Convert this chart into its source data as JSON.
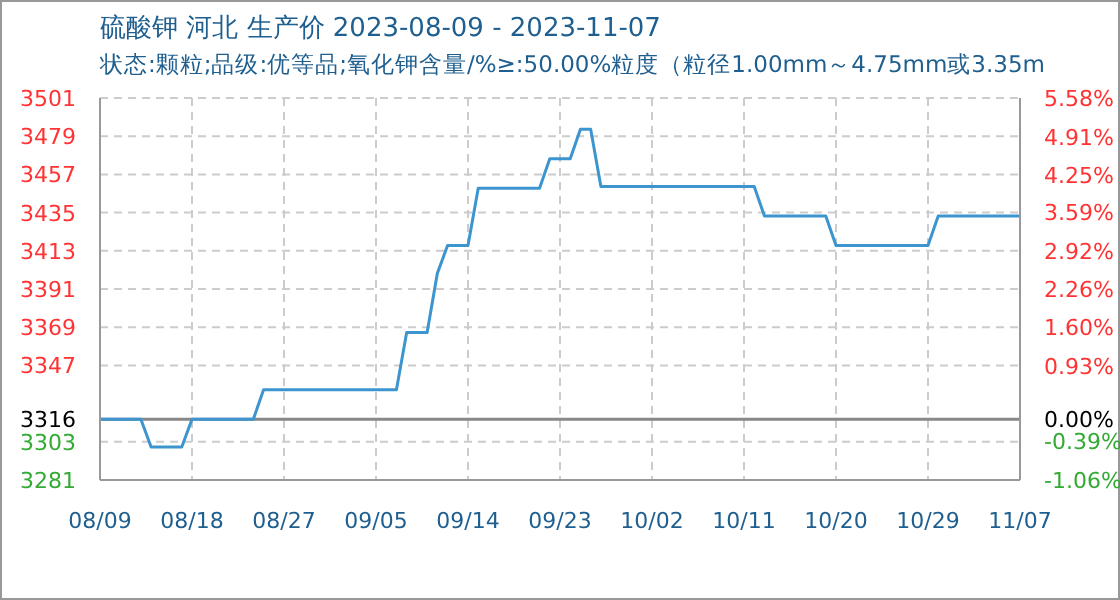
{
  "chart_data": {
    "type": "line",
    "title": "硫酸钾 河北 生产价 2023-08-09 - 2023-11-07",
    "subtitle": "状态:颗粒;品级:优等品;氧化钾含量/%≥:50.00%粒度（粒径1.00mm～4.75mm或3.35m",
    "x": [
      "2023-08-09",
      "2023-08-13",
      "2023-08-14",
      "2023-08-17",
      "2023-08-18",
      "2023-08-24",
      "2023-08-25",
      "2023-09-07",
      "2023-09-08",
      "2023-09-10",
      "2023-09-11",
      "2023-09-12",
      "2023-09-14",
      "2023-09-15",
      "2023-09-21",
      "2023-09-22",
      "2023-09-24",
      "2023-09-25",
      "2023-09-26",
      "2023-09-27",
      "2023-10-12",
      "2023-10-13",
      "2023-10-19",
      "2023-10-20",
      "2023-10-29",
      "2023-10-30",
      "2023-11-07"
    ],
    "series": [
      {
        "color": "#3d95d0",
        "values": [
          3316,
          3316,
          3300,
          3300,
          3316,
          3316,
          3333,
          3333,
          3366,
          3366,
          3400,
          3416,
          3416,
          3449,
          3449,
          3466,
          3466,
          3483,
          3483,
          3450,
          3450,
          3433,
          3433,
          3416,
          3416,
          3433,
          3433
        ]
      }
    ],
    "xlim": [
      "2023-08-09",
      "2023-11-07"
    ],
    "xticks": [
      {
        "value": "2023-08-09",
        "label": "08/09"
      },
      {
        "value": "2023-08-18",
        "label": "08/18"
      },
      {
        "value": "2023-08-27",
        "label": "08/27"
      },
      {
        "value": "2023-09-05",
        "label": "09/05"
      },
      {
        "value": "2023-09-14",
        "label": "09/14"
      },
      {
        "value": "2023-09-23",
        "label": "09/23"
      },
      {
        "value": "2023-10-02",
        "label": "10/02"
      },
      {
        "value": "2023-10-11",
        "label": "10/11"
      },
      {
        "value": "2023-10-20",
        "label": "10/20"
      },
      {
        "value": "2023-10-29",
        "label": "10/29"
      },
      {
        "value": "2023-11-07",
        "label": "11/07"
      }
    ],
    "ylim": [
      3281,
      3501
    ],
    "yticks": [
      3281,
      3303,
      3316,
      3347,
      3369,
      3391,
      3413,
      3435,
      3457,
      3479,
      3501
    ],
    "y2lim": [
      -1.06,
      5.58
    ],
    "y2ticks": [
      {
        "value": -1.06,
        "label": "-1.06%"
      },
      {
        "value": -0.39,
        "label": "-0.39%"
      },
      {
        "value": 0,
        "label": "0.00%"
      },
      {
        "value": 0.93,
        "label": "0.93%"
      },
      {
        "value": 1.6,
        "label": "1.60%"
      },
      {
        "value": 2.26,
        "label": "2.26%"
      },
      {
        "value": 2.92,
        "label": "2.92%"
      },
      {
        "value": 3.59,
        "label": "3.59%"
      },
      {
        "value": 4.25,
        "label": "4.25%"
      },
      {
        "value": 4.91,
        "label": "4.91%"
      },
      {
        "value": 5.58,
        "label": "5.58%"
      }
    ],
    "ref_lines": [
      {
        "axis": "y",
        "value": 3316,
        "color": "#888888",
        "line_style": "solid"
      }
    ],
    "grid": true,
    "marker": "none",
    "line_style": "solid"
  }
}
